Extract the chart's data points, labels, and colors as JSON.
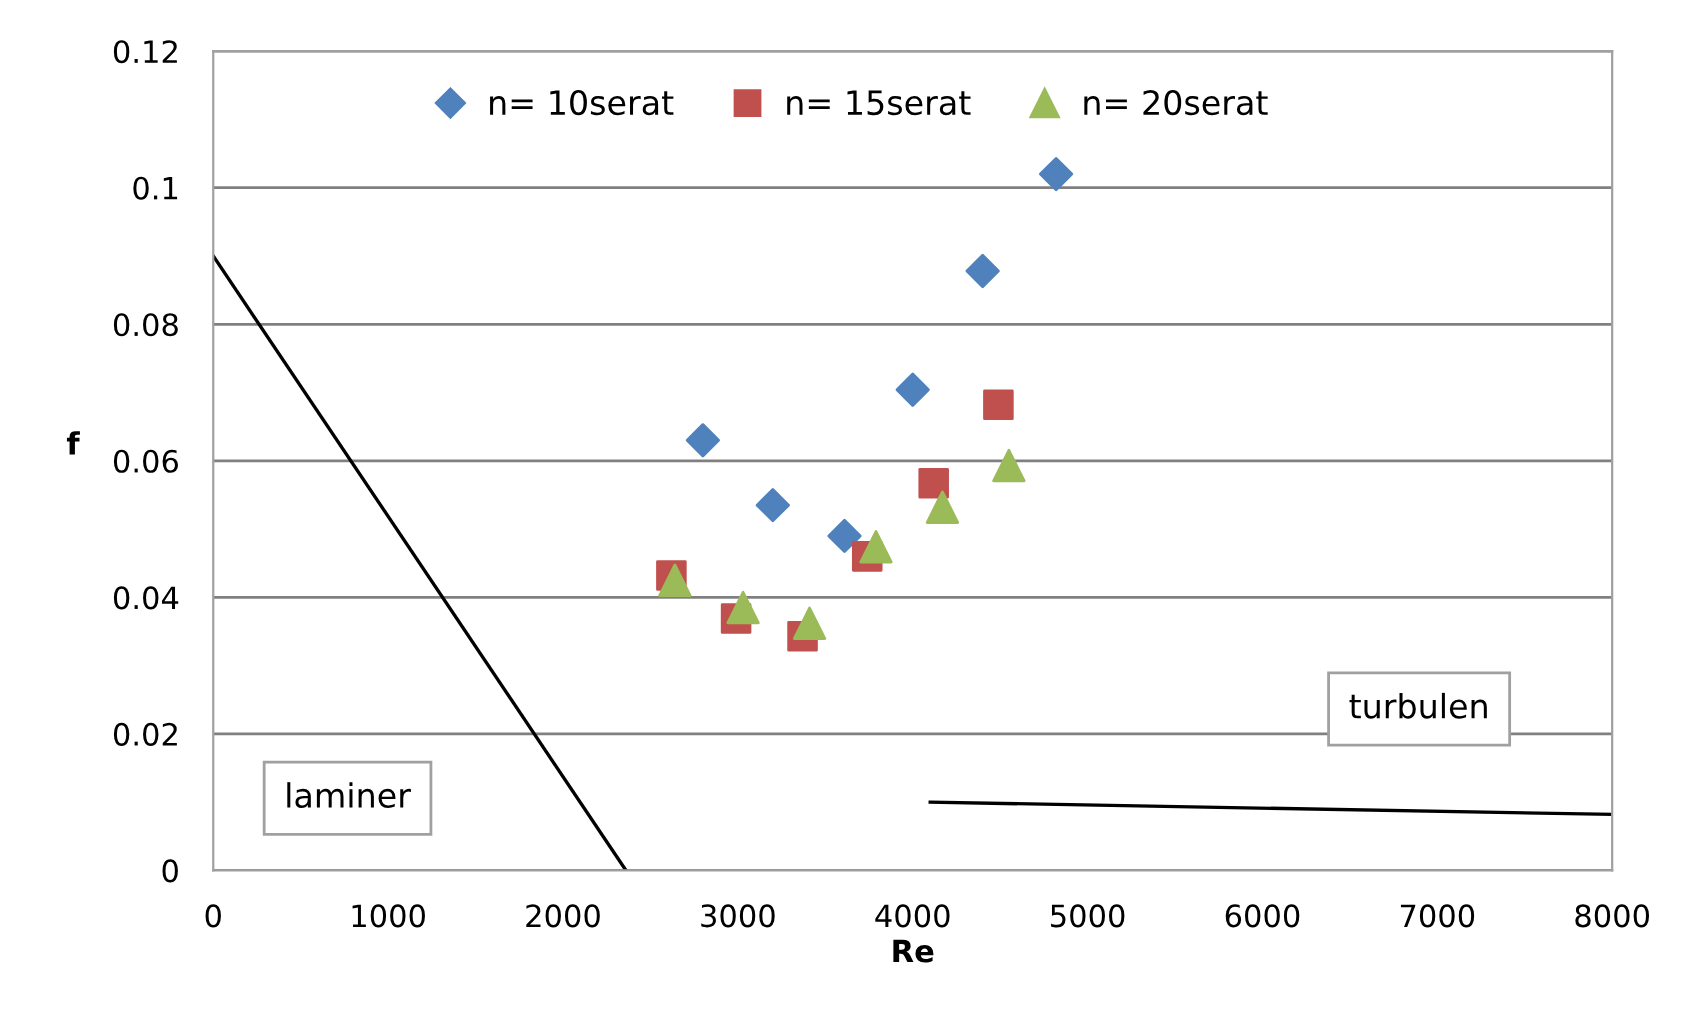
{
  "chart_data": {
    "type": "scatter",
    "xlabel": "Re",
    "ylabel": "f",
    "xlim": [
      0,
      8000
    ],
    "xticks": [
      0,
      1000,
      2000,
      3000,
      4000,
      5000,
      6000,
      7000,
      8000
    ],
    "ylim": [
      0,
      0.12
    ],
    "yticks": [
      0,
      0.02,
      0.04,
      0.06,
      0.08,
      0.1,
      0.12
    ],
    "grid": "y",
    "legend": "top",
    "series": [
      {
        "name": "n= 10serat",
        "color": "#4f81bd",
        "marker": "diamond",
        "x": [
          2800,
          3200,
          3610,
          4000,
          4400,
          4820
        ],
        "values": [
          0.063,
          0.0535,
          0.049,
          0.0704,
          0.0878,
          0.102
        ]
      },
      {
        "name": "n= 15serat",
        "color": "#c0504d",
        "marker": "square",
        "x": [
          2620,
          2990,
          3370,
          3740,
          4120,
          4490
        ],
        "values": [
          0.0432,
          0.0369,
          0.0343,
          0.046,
          0.0567,
          0.0682
        ]
      },
      {
        "name": "n= 20serat",
        "color": "#9bbb59",
        "marker": "triangle",
        "x": [
          2640,
          3030,
          3410,
          3790,
          4170,
          4550
        ],
        "values": [
          0.0425,
          0.0385,
          0.0362,
          0.0474,
          0.0532,
          0.0593
        ]
      },
      {
        "type": "line",
        "color": "#000000",
        "marker": "none",
        "x": [
          0,
          2360
        ],
        "values": [
          0.09,
          0
        ]
      },
      {
        "type": "line",
        "color": "#000000",
        "marker": "none",
        "x": [
          4100,
          8000
        ],
        "values": [
          0.01,
          0.0082
        ]
      }
    ],
    "annotations": [
      "laminer",
      "turbulen"
    ]
  }
}
